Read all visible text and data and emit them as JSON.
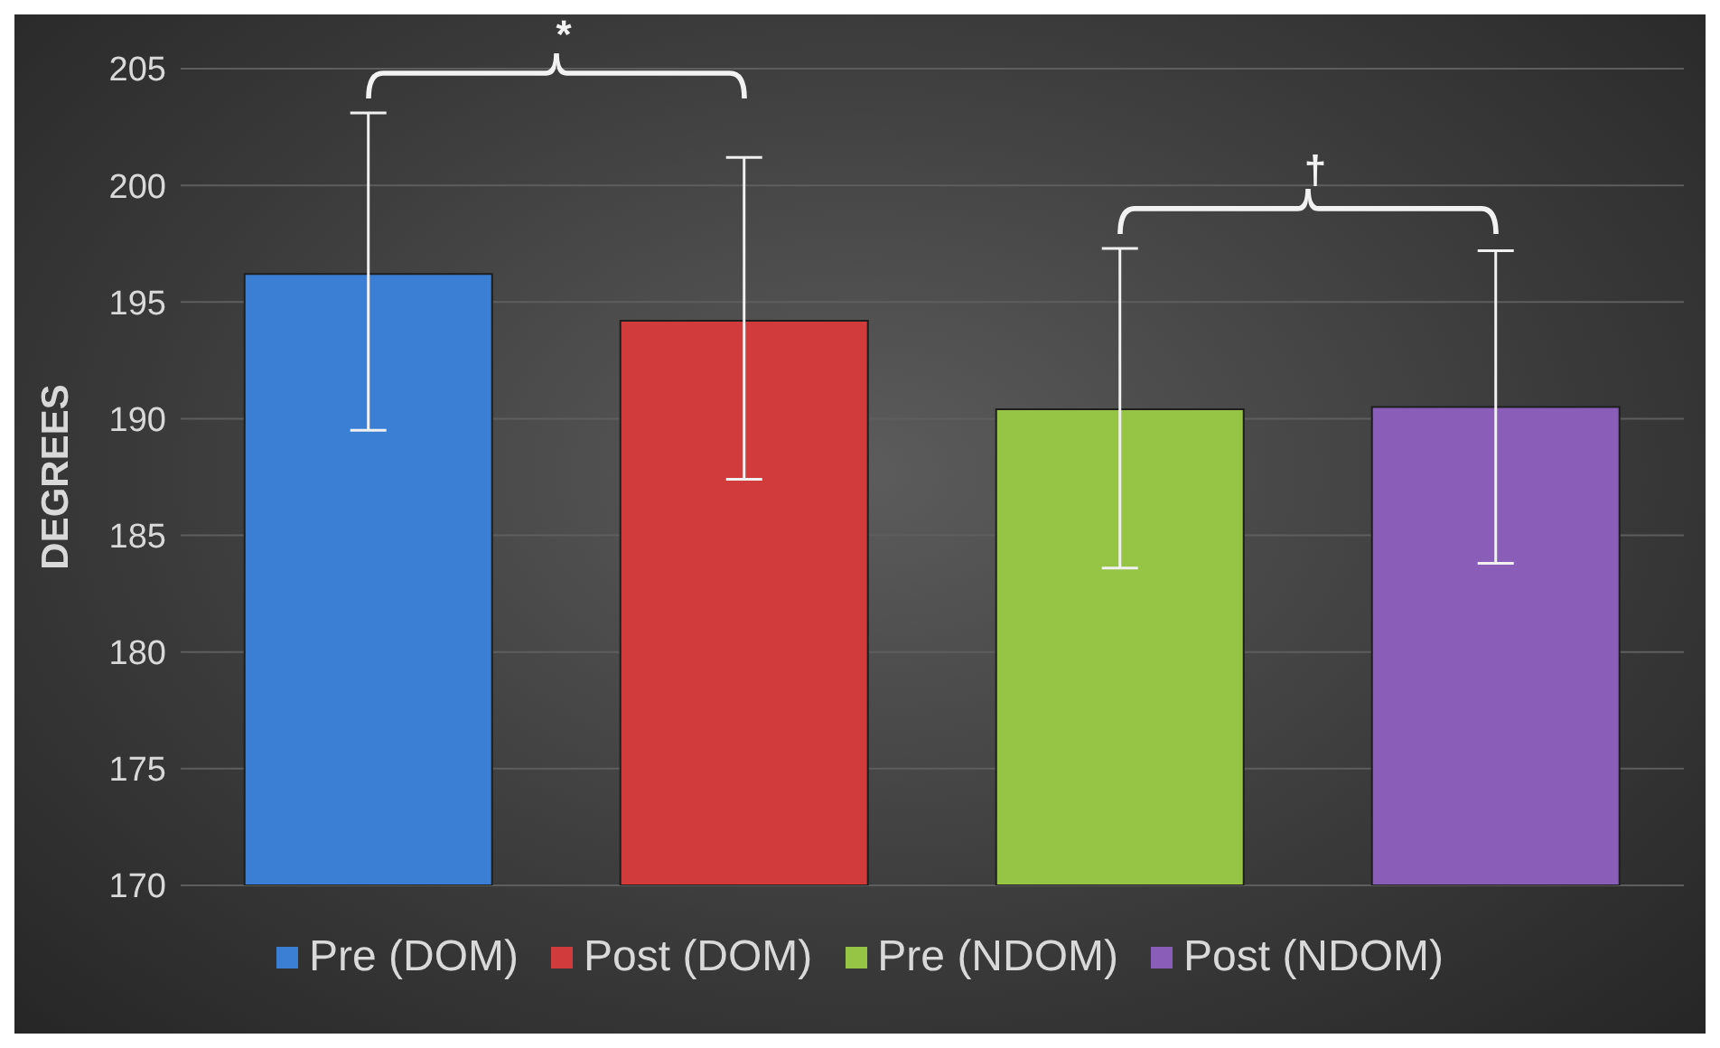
{
  "chart_data": {
    "type": "bar",
    "ylabel": "DEGREES",
    "categories": [
      null,
      null,
      null,
      null
    ],
    "series": [
      {
        "name": "Pre (DOM)",
        "color": "#3b7fd4",
        "values": [
          196.2,
          null,
          null,
          null
        ],
        "errors": [
          [
            189.5,
            203.1
          ],
          null,
          null,
          null
        ]
      },
      {
        "name": "Post (DOM)",
        "color": "#d13b3b",
        "values": [
          null,
          194.2,
          null,
          null
        ],
        "errors": [
          null,
          [
            187.4,
            201.2
          ],
          null,
          null
        ]
      },
      {
        "name": "Pre (NDOM)",
        "color": "#96c545",
        "values": [
          null,
          null,
          190.4,
          null
        ],
        "errors": [
          null,
          null,
          [
            183.6,
            197.3
          ],
          null
        ]
      },
      {
        "name": "Post (NDOM)",
        "color": "#8a5db8",
        "values": [
          null,
          null,
          null,
          190.5
        ],
        "errors": [
          null,
          null,
          null,
          [
            183.8,
            197.2
          ]
        ]
      }
    ],
    "ylim": [
      170,
      205
    ],
    "yticks": [
      170,
      175,
      180,
      185,
      190,
      195,
      200,
      205
    ],
    "grid": "y",
    "legend": "bottom",
    "annotations": [
      "*",
      "†"
    ]
  }
}
